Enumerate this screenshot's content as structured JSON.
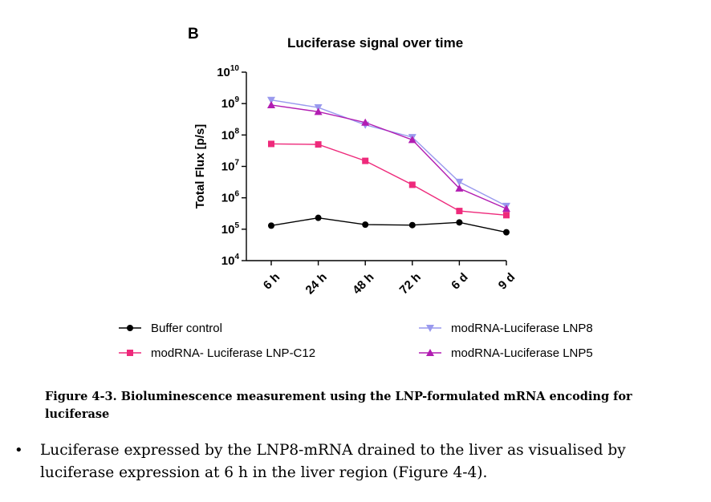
{
  "panel_label": "B",
  "caption": {
    "number": "Figure 4-3.",
    "text": "Bioluminescence measurement using the LNP-formulated mRNA encoding for luciferase"
  },
  "bullet": {
    "symbol": "•",
    "text": "Luciferase expressed by the LNP8-mRNA drained to the liver as visualised by luciferase expression at 6 h in the liver region (Figure 4-4)."
  },
  "chart_data": {
    "type": "line",
    "title": "Luciferase signal over time",
    "xlabel": "",
    "ylabel": "Total Flux [p/s]",
    "yscale": "log",
    "ylim": [
      10000,
      10000000000
    ],
    "ytick_exponents": [
      4,
      5,
      6,
      7,
      8,
      9,
      10
    ],
    "categories": [
      "6 h",
      "24 h",
      "48 h",
      "72 h",
      "6 d",
      "9 d"
    ],
    "series": [
      {
        "name": "Buffer control",
        "marker": "circle",
        "color": "#000000",
        "values": [
          130000,
          230000,
          140000,
          135000,
          165000,
          80000
        ]
      },
      {
        "name": "modRNA- Luciferase LNP-C12",
        "marker": "square",
        "color": "#ee2a7b",
        "values": [
          52000000,
          50000000,
          15000000,
          2600000,
          380000,
          280000
        ]
      },
      {
        "name": "modRNA-Luciferase LNP8",
        "marker": "triangle-down",
        "color": "#9999ee",
        "values": [
          1300000000,
          750000000,
          210000000,
          85000000,
          3200000,
          550000
        ]
      },
      {
        "name": "modRNA-Luciferase LNP5",
        "marker": "triangle-up",
        "color": "#b21db2",
        "values": [
          900000000,
          550000000,
          250000000,
          70000000,
          2000000,
          450000
        ]
      }
    ]
  }
}
